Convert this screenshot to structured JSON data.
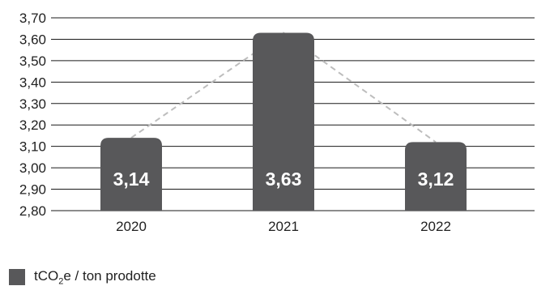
{
  "chart_data": {
    "type": "bar",
    "categories": [
      "2020",
      "2021",
      "2022"
    ],
    "series": [
      {
        "name": "tCO₂e / ton prodotte",
        "values": [
          3.14,
          3.63,
          3.12
        ]
      }
    ],
    "data_labels": [
      "3,14",
      "3,63",
      "3,12"
    ],
    "yticks": [
      "2,80",
      "2,90",
      "3,00",
      "3,10",
      "3,20",
      "3,30",
      "3,40",
      "3,50",
      "3,60",
      "3,70"
    ],
    "ylim": [
      2.8,
      3.7
    ],
    "grid": true,
    "trend_line": "dashed",
    "legend_position": "bottom-left",
    "bar_color": "#58585a",
    "trend_color": "#bdbdbd",
    "title": "",
    "xlabel": "",
    "ylabel": ""
  },
  "legend": {
    "prefix": "tCO",
    "subscript": "2",
    "suffix": "e / ton prodotte"
  }
}
